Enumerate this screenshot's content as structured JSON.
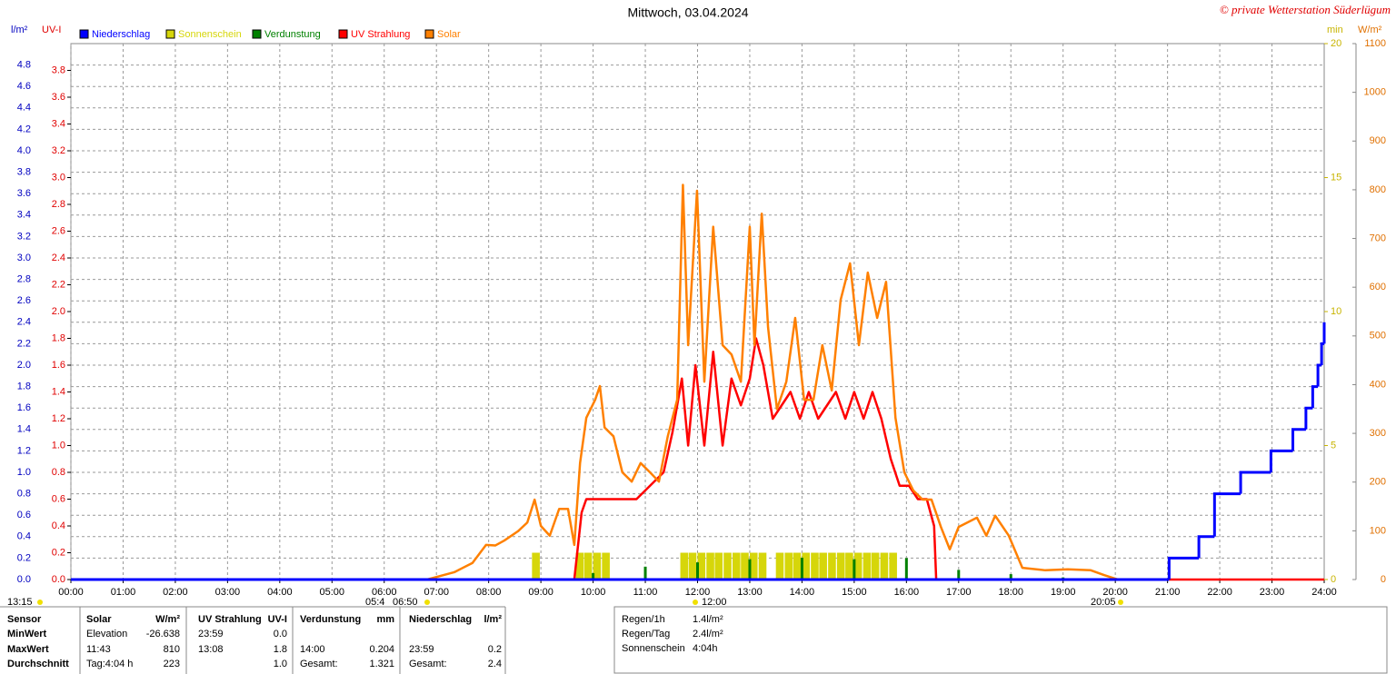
{
  "chart_data": {
    "type": "line",
    "title": "Mittwoch, 03.04.2024",
    "credit": "© private Wetterstation Süderlügum",
    "ylabel": "l/m²",
    "y2label": "UV-I",
    "y3label": "min",
    "y4label": "W/m²",
    "xlim": [
      0,
      24
    ],
    "xticks": [
      {
        "value": 0,
        "label": "00:00"
      },
      {
        "value": 1,
        "label": "01:00"
      },
      {
        "value": 2,
        "label": "02:00"
      },
      {
        "value": 3,
        "label": "03:00"
      },
      {
        "value": 4,
        "label": "04:00"
      },
      {
        "value": 5,
        "label": "05:00"
      },
      {
        "value": 6,
        "label": "06:00"
      },
      {
        "value": 7,
        "label": "07:00"
      },
      {
        "value": 8,
        "label": "08:00"
      },
      {
        "value": 9,
        "label": "09:00"
      },
      {
        "value": 10,
        "label": "10:00"
      },
      {
        "value": 11,
        "label": "11:00"
      },
      {
        "value": 12,
        "label": "12:00"
      },
      {
        "value": 13,
        "label": "13:00"
      },
      {
        "value": 14,
        "label": "14:00"
      },
      {
        "value": 15,
        "label": "15:00"
      },
      {
        "value": 16,
        "label": "16:00"
      },
      {
        "value": 17,
        "label": "17:00"
      },
      {
        "value": 18,
        "label": "18:00"
      },
      {
        "value": 19,
        "label": "19:00"
      },
      {
        "value": 20,
        "label": "20:00"
      },
      {
        "value": 21,
        "label": "21:00"
      },
      {
        "value": 22,
        "label": "22:00"
      },
      {
        "value": 23,
        "label": "23:00"
      },
      {
        "value": 24,
        "label": "24:00"
      }
    ],
    "ylim": [
      0,
      5
    ],
    "yticks": [
      {
        "value": 0,
        "label": "0.0"
      },
      0.2,
      0.4,
      0.6,
      0.8,
      {
        "value": 1,
        "label": "1.0"
      },
      1.2,
      1.4,
      1.6,
      1.8,
      {
        "value": 2,
        "label": "2.0"
      },
      2.2,
      2.4,
      2.6,
      2.8,
      {
        "value": 3,
        "label": "3.0"
      },
      3.2,
      3.4,
      3.6,
      3.8,
      {
        "value": 4,
        "label": "4.0"
      },
      4.2,
      4.4,
      4.6,
      4.8
    ],
    "y2lim": [
      0,
      4
    ],
    "y2ticks": [
      {
        "value": 0,
        "label": "0.0"
      },
      0.2,
      0.4,
      0.6,
      0.8,
      {
        "value": 1,
        "label": "1.0"
      },
      1.2,
      1.4,
      1.6,
      1.8,
      {
        "value": 2,
        "label": "2.0"
      },
      2.2,
      2.4,
      2.6,
      2.8,
      {
        "value": 3,
        "label": "3.0"
      },
      3.2,
      3.4,
      3.6,
      3.8
    ],
    "y3lim": [
      0,
      20
    ],
    "y3ticks": [
      0,
      5,
      10,
      15,
      20
    ],
    "y4lim": [
      0,
      1100
    ],
    "y4ticks": [
      0,
      100,
      200,
      300,
      400,
      500,
      600,
      700,
      800,
      900,
      1000,
      1100
    ],
    "grid": true,
    "series": [
      {
        "name": "Niederschlag",
        "color": "#0000ff",
        "axis": "y",
        "style": "step",
        "x": [
          0,
          21.03,
          21.6,
          21.9,
          22.4,
          22.98,
          23.4,
          23.65,
          23.78,
          23.88,
          23.95,
          24
        ],
        "values": [
          0,
          0.2,
          0.4,
          0.8,
          1.0,
          1.2,
          1.4,
          1.6,
          1.8,
          2.0,
          2.2,
          2.4
        ]
      },
      {
        "name": "Sonnenschein",
        "color": "#d6d60a",
        "axis": "y3",
        "style": "bar",
        "x": [
          8.83,
          9.67,
          9.83,
          10.0,
          10.17,
          11.67,
          11.83,
          12.0,
          12.17,
          12.33,
          12.5,
          12.67,
          12.83,
          13.0,
          13.17,
          13.5,
          13.67,
          13.83,
          14.0,
          14.17,
          14.33,
          14.5,
          14.67,
          14.83,
          15.0,
          15.17,
          15.33,
          15.5,
          15.67
        ],
        "values": [
          1,
          1,
          1,
          1,
          1,
          1,
          1,
          1,
          1,
          1,
          1,
          1,
          1,
          1,
          1,
          1,
          1,
          1,
          1,
          1,
          1,
          1,
          1,
          1,
          1,
          1,
          1,
          1,
          1
        ]
      },
      {
        "name": "Verdunstung",
        "color": "#008000",
        "axis": "y",
        "style": "spike",
        "x": [
          9,
          10,
          11,
          12,
          13,
          14,
          15,
          16,
          17,
          18,
          19,
          20
        ],
        "values": [
          0.01,
          0.06,
          0.12,
          0.16,
          0.19,
          0.204,
          0.19,
          0.2,
          0.09,
          0.05,
          0.02,
          0.01
        ]
      },
      {
        "name": "UV Strahlung",
        "color": "#ff0000",
        "axis": "y2",
        "style": "line",
        "x": [
          4.18,
          9.64,
          9.78,
          9.87,
          10.83,
          11.09,
          11.35,
          11.52,
          11.7,
          11.82,
          11.96,
          12.13,
          12.3,
          12.48,
          12.65,
          12.83,
          13.0,
          13.12,
          13.26,
          13.44,
          13.61,
          13.78,
          13.96,
          14.13,
          14.31,
          14.48,
          14.65,
          14.83,
          15.0,
          15.18,
          15.35,
          15.52,
          15.7,
          15.87,
          16.05,
          16.22,
          16.39,
          16.53,
          16.57,
          24
        ],
        "values": [
          0,
          0,
          0.5,
          0.6,
          0.6,
          0.7,
          0.8,
          1.1,
          1.5,
          1.0,
          1.6,
          1.0,
          1.7,
          1.0,
          1.5,
          1.3,
          1.5,
          1.8,
          1.6,
          1.2,
          1.3,
          1.4,
          1.2,
          1.4,
          1.2,
          1.3,
          1.4,
          1.2,
          1.4,
          1.2,
          1.4,
          1.2,
          0.9,
          0.7,
          0.7,
          0.6,
          0.6,
          0.4,
          0,
          0
        ]
      },
      {
        "name": "Solar",
        "color": "#ff8000",
        "axis": "y4",
        "style": "line",
        "x": [
          6.82,
          7.34,
          7.69,
          7.95,
          8.13,
          8.3,
          8.56,
          8.74,
          8.88,
          9.0,
          9.17,
          9.35,
          9.52,
          9.64,
          9.75,
          9.87,
          10.04,
          10.13,
          10.22,
          10.39,
          10.56,
          10.74,
          10.91,
          11.09,
          11.26,
          11.43,
          11.61,
          11.72,
          11.82,
          11.99,
          12.13,
          12.3,
          12.48,
          12.65,
          12.83,
          13.0,
          13.09,
          13.23,
          13.35,
          13.52,
          13.7,
          13.87,
          14.04,
          14.22,
          14.39,
          14.57,
          14.74,
          14.92,
          15.09,
          15.26,
          15.44,
          15.61,
          15.79,
          15.96,
          16.13,
          16.31,
          16.48,
          16.66,
          16.83,
          17.0,
          17.35,
          17.53,
          17.7,
          17.96,
          18.22,
          18.66,
          19.09,
          19.53,
          19.79,
          20.05
        ],
        "values": [
          0,
          15,
          34,
          71,
          70,
          80,
          99,
          117,
          164,
          110,
          90,
          145,
          145,
          71,
          239,
          332,
          369,
          397,
          312,
          294,
          220,
          201,
          239,
          220,
          201,
          294,
          369,
          810,
          481,
          798,
          406,
          724,
          481,
          462,
          406,
          724,
          481,
          751,
          518,
          350,
          406,
          537,
          369,
          369,
          481,
          388,
          574,
          649,
          481,
          630,
          537,
          611,
          332,
          220,
          183,
          164,
          164,
          108,
          62,
          108,
          127,
          90,
          131,
          90,
          24,
          19,
          21,
          19,
          9,
          0
        ]
      }
    ],
    "annotations": [
      "13:15",
      "05:4",
      "06:50",
      "12:00",
      "20:05"
    ]
  },
  "summary_table": {
    "headers": [
      "Sensor",
      "Solar",
      "W/m²",
      "UV Strahlung",
      "UV-I",
      "Verdunstung",
      "mm",
      "Niederschlag",
      "l/m²"
    ],
    "rows": [
      [
        "MinWert",
        "Elevation",
        "-26.638",
        "23:59",
        "0.0",
        null,
        null,
        null,
        null
      ],
      [
        "MaxWert",
        "11:43",
        "810",
        "13:08",
        "1.8",
        "14:00",
        "0.204",
        "23:59",
        "0.2"
      ],
      [
        "Durchschnitt",
        "Tag:4:04 h",
        "223",
        null,
        "1.0",
        "Gesamt:",
        "1.321",
        "Gesamt:",
        "2.4"
      ]
    ]
  },
  "stats": [
    [
      "Regen/1h",
      "1.4l/m²"
    ],
    [
      "Regen/Tag",
      "2.4l/m²"
    ],
    [
      "Sonnenschein",
      "4:04h"
    ]
  ]
}
